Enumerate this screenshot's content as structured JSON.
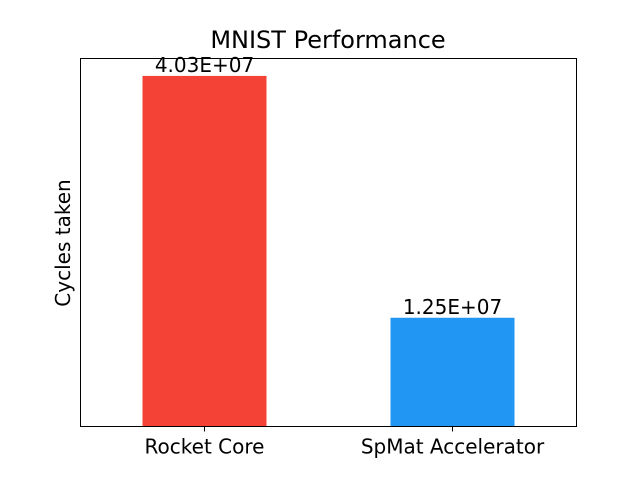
{
  "chart_data": {
    "type": "bar",
    "title": "MNIST Performance",
    "xlabel": "",
    "ylabel": "Cycles taken",
    "categories": [
      "Rocket Core",
      "SpMat Accelerator"
    ],
    "values": [
      40300000,
      12500000
    ],
    "value_labels": [
      "4.03E+07",
      "1.25E+07"
    ],
    "colors": [
      "#f44336",
      "#2196f3"
    ],
    "ylim": [
      0,
      42300000
    ],
    "yticks_visible": false,
    "grid": false,
    "legend": "none"
  }
}
